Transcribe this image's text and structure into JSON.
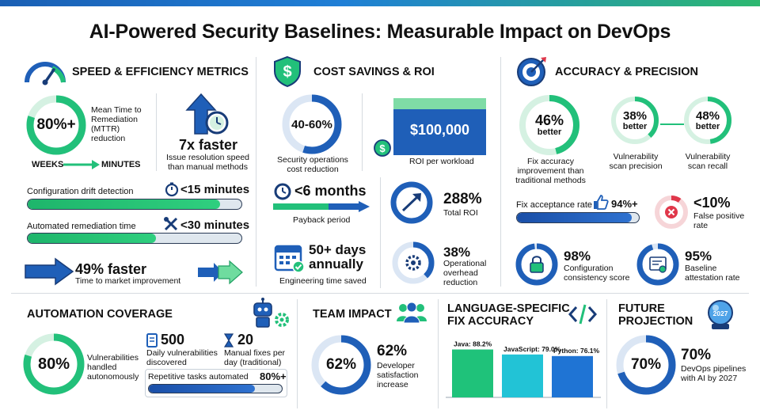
{
  "title": "AI-Powered Security Baselines: Measurable Impact on DevOps",
  "colors": {
    "blue": "#1f5fb8",
    "green": "#22c07a",
    "navy": "#183c78",
    "red": "#e0374a"
  },
  "speed": {
    "title": "SPEED & EFFICIENCY METRICS",
    "icon": "speedometer-icon",
    "mttr_value": "80%+",
    "mttr_fill": 0.8,
    "mttr_label": "Mean Time to Remediation (MTTR) reduction",
    "weeks": "WEEKS",
    "minutes": "MINUTES",
    "faster_value": "7x faster",
    "faster_label": "Issue resolution speed than manual methods",
    "drift_label": "Configuration drift detection",
    "drift_value": "<15 minutes",
    "drift_fill": 0.9,
    "remed_label": "Automated remediation time",
    "remed_value": "<30 minutes",
    "remed_fill": 0.6,
    "market_value": "49% faster",
    "market_label": "Time to market improvement"
  },
  "cost": {
    "title": "COST SAVINGS & ROI",
    "icon": "dollar-shield-icon",
    "ops_value": "40-60%",
    "ops_fill": 0.55,
    "ops_label": "Security operations cost reduction",
    "roi_value": "$100,000",
    "roi_label": "ROI per workload",
    "payback_value": "<6 months",
    "payback_label": "Payback period",
    "total_roi_value": "288%",
    "total_roi_label": "Total ROI",
    "eng_value": "50+ days annually",
    "eng_label": "Engineering time saved",
    "overhead_value": "38%",
    "overhead_fill": 0.38,
    "overhead_label": "Operational overhead reduction"
  },
  "accuracy": {
    "title": "ACCURACY & PRECISION",
    "icon": "target-icon",
    "fix_value": "46%",
    "fix_sub": "better",
    "fix_fill": 0.46,
    "fix_label": "Fix accuracy improvement than traditional methods",
    "precision_value": "38%",
    "precision_sub": "better",
    "precision_fill": 0.38,
    "precision_label": "Vulnerability scan precision",
    "recall_value": "48%",
    "recall_sub": "better",
    "recall_fill": 0.48,
    "recall_label": "Vulnerability scan recall",
    "accept_label": "Fix acceptance rate",
    "accept_value": "94%+",
    "accept_fill": 0.94,
    "fp_value": "<10%",
    "fp_fill": 0.1,
    "fp_label": "False positive rate",
    "consistency_value": "98%",
    "consistency_fill": 0.98,
    "consistency_label": "Configuration consistency score",
    "attest_value": "95%",
    "attest_fill": 0.95,
    "attest_label": "Baseline attestation rate"
  },
  "automation": {
    "title": "AUTOMATION COVERAGE",
    "icon": "robot-icon",
    "auto_value": "80%",
    "auto_fill": 0.8,
    "auto_label": "Vulnerabilities handled autonomously",
    "daily_value": "500",
    "daily_label": "Daily vulnerabilities discovered",
    "manual_value": "20",
    "manual_label": "Manual fixes per day (traditional)",
    "repetitive_label": "Repetitive tasks automated",
    "repetitive_value": "80%+",
    "repetitive_fill": 0.8
  },
  "team": {
    "title": "TEAM IMPACT",
    "icon": "team-icon",
    "value": "62%",
    "fill": 0.62,
    "big_value": "62%",
    "label": "Developer satisfaction increase"
  },
  "language": {
    "title": "LANGUAGE-SPECIFIC FIX ACCURACY",
    "icon": "code-icon"
  },
  "chart_data": {
    "type": "bar",
    "categories": [
      "Java",
      "JavaScript",
      "Python"
    ],
    "values": [
      88.2,
      79.0,
      76.1
    ],
    "labels": [
      "Java: 88.2%",
      "JavaScript: 79.0%",
      "Python: 76.1%"
    ],
    "colors": [
      "#1fc27a",
      "#22c3d6",
      "#1f74d4"
    ],
    "ylim": [
      0,
      100
    ],
    "title": "LANGUAGE-SPECIFIC FIX ACCURACY",
    "xlabel": "",
    "ylabel": ""
  },
  "future": {
    "title": "FUTURE PROJECTION",
    "icon": "crystal-ball-icon",
    "ball_year": "2027",
    "value": "70%",
    "fill": 0.7,
    "big_value": "70%",
    "label": "DevOps pipelines with AI by 2027"
  }
}
